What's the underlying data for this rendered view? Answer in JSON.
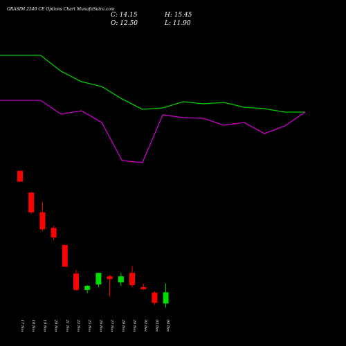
{
  "header": {
    "title": "GRASIM 2540  CE Options  Chart MunafaSutra.com",
    "close_label": "C: 14.15",
    "high_label": "H: 15.45",
    "open_label": "O: 12.50",
    "low_label": "L: 11.90"
  },
  "colors": {
    "background": "#000000",
    "up_candle": "#00dd00",
    "down_candle": "#ff0000",
    "line_upper": "#00cc00",
    "line_lower": "#cc00cc",
    "text": "#ffffff"
  },
  "chart_data": [
    {
      "type": "line",
      "title": "",
      "x": [
        "",
        "",
        "17 Nov",
        "18 Nov",
        "19 Nov",
        "20 Nov",
        "21 Nov",
        "22 Nov",
        "25 Nov",
        "26 Nov",
        "27 Nov",
        "28 Nov",
        "29 Nov",
        "02 Dec",
        "03 Dec",
        "04 Dec"
      ],
      "series": [
        {
          "color": "green",
          "values": [
            80,
            80,
            80,
            103,
            118,
            125,
            143,
            158,
            156,
            147,
            150,
            148,
            155,
            157,
            162,
            162
          ]
        },
        {
          "color": "magenta",
          "values": [
            145,
            145,
            145,
            165,
            160,
            177,
            232,
            235,
            166,
            170,
            171,
            181,
            177,
            193,
            182,
            162
          ]
        }
      ],
      "grid": false
    },
    {
      "type": "candlestick",
      "title": "",
      "categories": [
        "17 Nov",
        "18 Nov",
        "19 Nov",
        "20 Nov",
        "21 Nov",
        "22 Nov",
        "25 Nov",
        "26 Nov",
        "27 Nov",
        "28 Nov",
        "29 Nov",
        "02 Dec",
        "03 Dec",
        "04 Dec"
      ],
      "candles": [
        {
          "open": 32.0,
          "high": 32.0,
          "low": 30.4,
          "close": 30.4
        },
        {
          "open": 28.8,
          "high": 28.9,
          "low": 25.7,
          "close": 25.9
        },
        {
          "open": 25.9,
          "high": 27.4,
          "low": 23.1,
          "close": 23.4
        },
        {
          "open": 23.6,
          "high": 23.9,
          "low": 21.8,
          "close": 22.2
        },
        {
          "open": 21.1,
          "high": 21.1,
          "low": 17.9,
          "close": 17.9
        },
        {
          "open": 16.9,
          "high": 17.4,
          "low": 14.4,
          "close": 14.5
        },
        {
          "open": 14.5,
          "high": 15.2,
          "low": 14.0,
          "close": 15.1
        },
        {
          "open": 15.3,
          "high": 17.0,
          "low": 14.9,
          "close": 17.0
        },
        {
          "open": 16.5,
          "high": 16.7,
          "low": 13.5,
          "close": 16.1
        },
        {
          "open": 15.6,
          "high": 17.0,
          "low": 15.1,
          "close": 16.5
        },
        {
          "open": 17.0,
          "high": 18.0,
          "low": 14.9,
          "close": 15.2
        },
        {
          "open": 14.9,
          "high": 15.4,
          "low": 14.5,
          "close": 14.6
        },
        {
          "open": 14.1,
          "high": 14.3,
          "low": 12.3,
          "close": 12.6
        },
        {
          "open": 12.5,
          "high": 15.45,
          "low": 11.9,
          "close": 14.15
        }
      ],
      "ylim": [
        9,
        33
      ],
      "grid": false
    }
  ]
}
